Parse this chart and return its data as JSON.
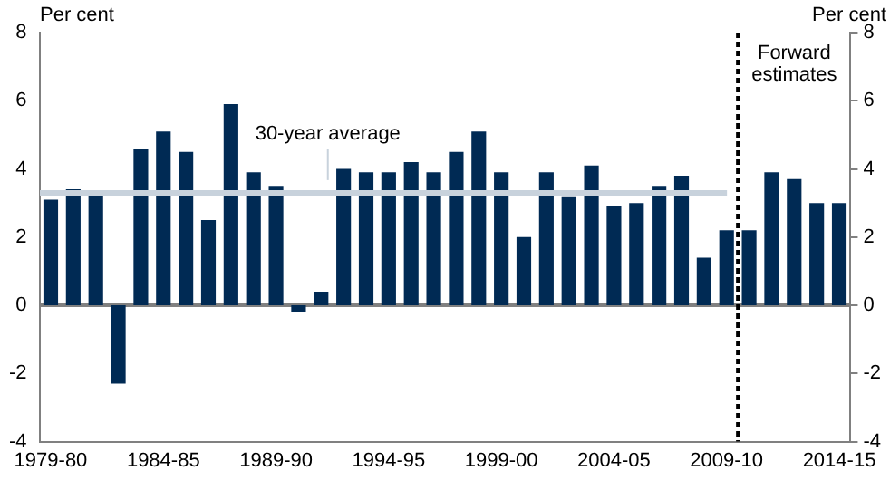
{
  "chart_data": {
    "type": "bar",
    "ylabel": "Per cent",
    "y2label": "Per cent",
    "categories": [
      "1979-80",
      null,
      null,
      null,
      null,
      "1984-85",
      null,
      null,
      null,
      null,
      "1989-90",
      null,
      null,
      null,
      null,
      "1994-95",
      null,
      null,
      null,
      null,
      "1999-00",
      null,
      null,
      null,
      null,
      "2004-05",
      null,
      null,
      null,
      null,
      "2009-10",
      null,
      null,
      null,
      null,
      "2014-15"
    ],
    "series": [
      {
        "color": "#002a54",
        "values": [
          3.1,
          3.4,
          3.3,
          -2.3,
          4.6,
          5.1,
          4.5,
          2.5,
          5.9,
          3.9,
          3.5,
          -0.2,
          0.4,
          4.0,
          3.9,
          3.9,
          4.2,
          3.9,
          4.5,
          5.1,
          3.9,
          2.0,
          3.9,
          3.2,
          4.1,
          2.9,
          3.0,
          3.5,
          3.8,
          1.4,
          2.2,
          2.2,
          3.9,
          3.7,
          3.0,
          3.0
        ]
      }
    ],
    "ylim": [
      -4,
      8
    ],
    "yticks": [
      -4,
      -2,
      0,
      2,
      4,
      6,
      8
    ],
    "y2lim": [
      -4,
      8
    ],
    "y2ticks": [
      -4,
      -2,
      0,
      2,
      4,
      6,
      8
    ],
    "ref_lines": [
      {
        "axis": "y",
        "value": 3.3,
        "label": "30-year average",
        "color": "#c8d2dc"
      },
      {
        "axis": "x",
        "value": "2009-10",
        "label": "Forward estimates",
        "color": "#000000",
        "line_style": "dashed"
      }
    ],
    "grid": false,
    "legend": false
  }
}
